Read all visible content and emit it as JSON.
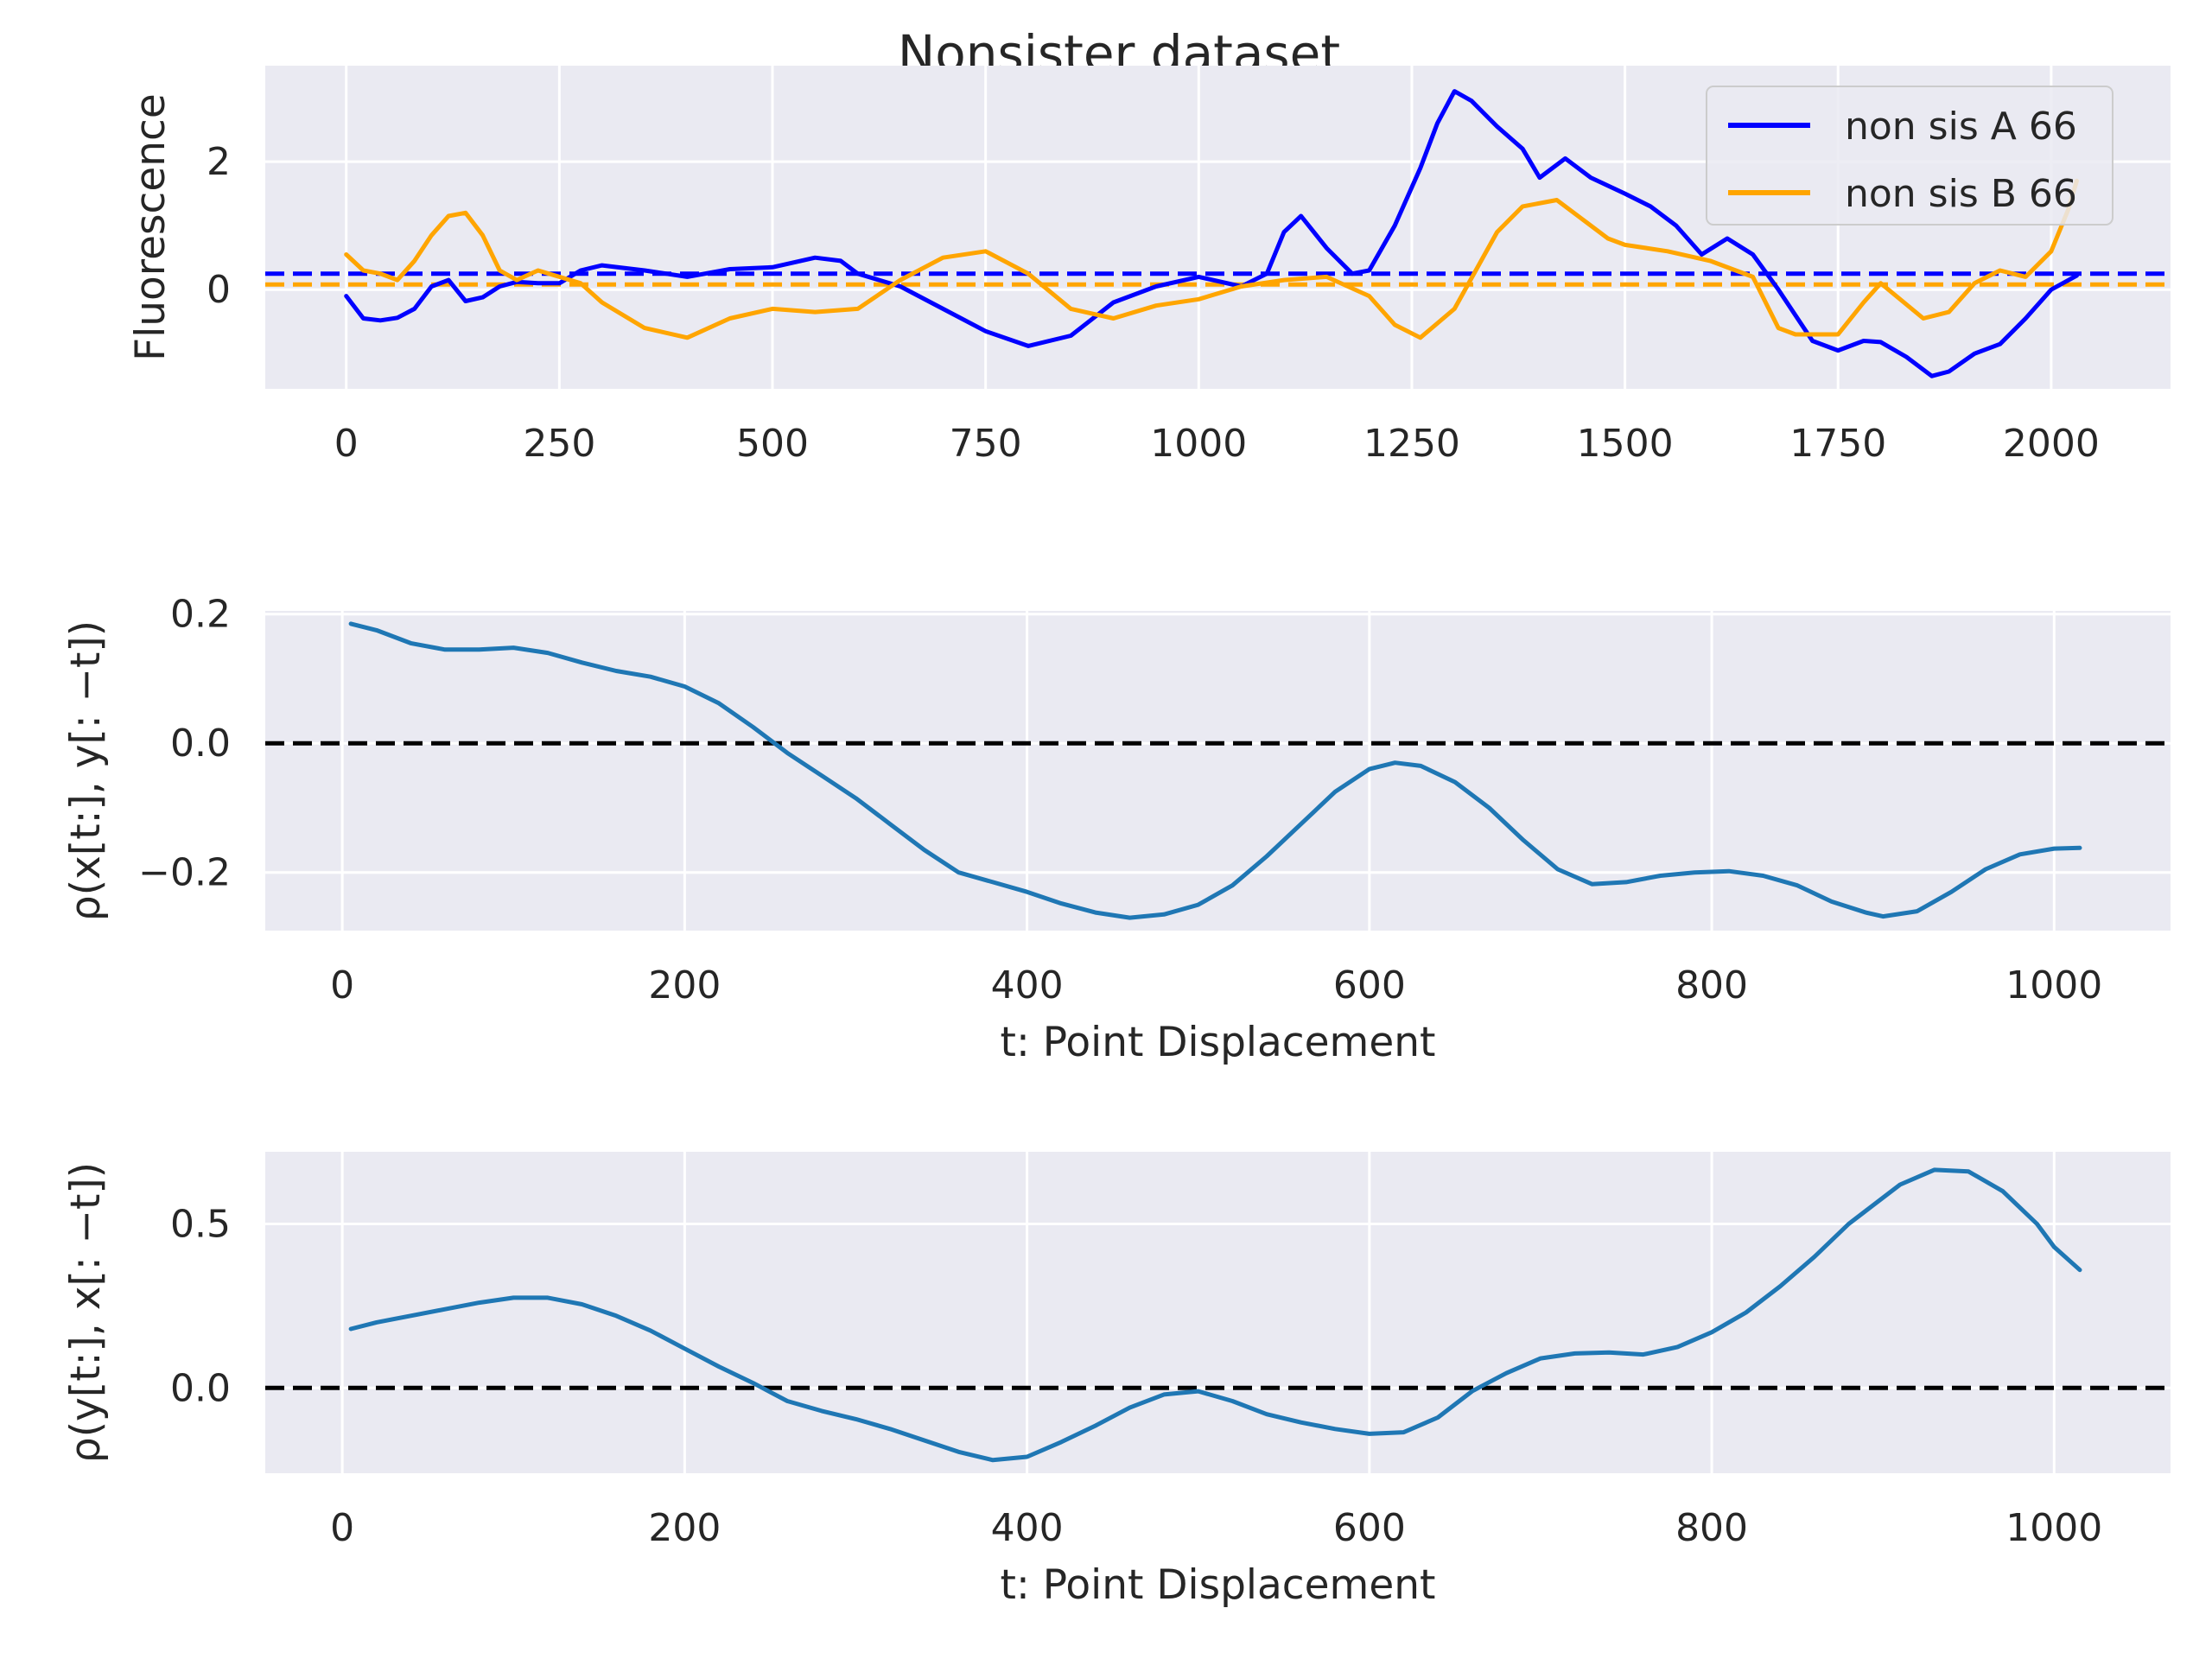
{
  "title": "Nonsister dataset",
  "colors": {
    "background": "#eaeaf2",
    "grid": "#ffffff",
    "series_a": "#0000ff",
    "series_b": "#ffa500",
    "correlation": "#1f77b4",
    "zero_line": "#000000"
  },
  "chart_data": [
    {
      "type": "line",
      "title": "Nonsister dataset",
      "xlabel": "",
      "ylabel": "Fluorescence",
      "xlim": [
        -95,
        2140
      ],
      "ylim": [
        -1.55,
        3.5
      ],
      "xticks": [
        0,
        250,
        500,
        750,
        1000,
        1250,
        1500,
        1750,
        2000
      ],
      "yticks": [
        0,
        2
      ],
      "grid": true,
      "legend": "top-right",
      "series": [
        {
          "name": "non sis A 66",
          "color": "#0000ff",
          "x": [
            0,
            20,
            40,
            60,
            80,
            100,
            120,
            140,
            160,
            180,
            200,
            225,
            250,
            275,
            300,
            350,
            400,
            450,
            500,
            550,
            580,
            600,
            650,
            700,
            750,
            800,
            850,
            900,
            950,
            1000,
            1050,
            1080,
            1100,
            1120,
            1150,
            1180,
            1200,
            1230,
            1260,
            1280,
            1300,
            1320,
            1350,
            1380,
            1400,
            1430,
            1460,
            1500,
            1530,
            1560,
            1590,
            1620,
            1650,
            1680,
            1720,
            1750,
            1780,
            1800,
            1830,
            1860,
            1880,
            1910,
            1940,
            1970,
            2000,
            2030
          ],
          "values": [
            -0.1,
            -0.45,
            -0.48,
            -0.44,
            -0.3,
            0.05,
            0.15,
            -0.18,
            -0.12,
            0.05,
            0.12,
            0.1,
            0.1,
            0.3,
            0.38,
            0.3,
            0.2,
            0.32,
            0.35,
            0.5,
            0.45,
            0.25,
            0.05,
            -0.3,
            -0.65,
            -0.88,
            -0.72,
            -0.2,
            0.05,
            0.2,
            0.05,
            0.25,
            0.9,
            1.15,
            0.65,
            0.25,
            0.3,
            1.0,
            1.9,
            2.6,
            3.1,
            2.95,
            2.55,
            2.2,
            1.75,
            2.05,
            1.75,
            1.5,
            1.3,
            1.0,
            0.55,
            0.8,
            0.55,
            0.0,
            -0.8,
            -0.95,
            -0.8,
            -0.82,
            -1.05,
            -1.35,
            -1.28,
            -1.0,
            -0.85,
            -0.45,
            0.0,
            0.22
          ]
        },
        {
          "name": "non sis B 66",
          "color": "#ffa500",
          "x": [
            0,
            20,
            40,
            60,
            80,
            100,
            120,
            140,
            160,
            180,
            200,
            225,
            250,
            275,
            300,
            350,
            400,
            450,
            500,
            550,
            600,
            650,
            700,
            750,
            800,
            850,
            900,
            950,
            1000,
            1050,
            1100,
            1150,
            1200,
            1230,
            1260,
            1300,
            1350,
            1380,
            1420,
            1450,
            1480,
            1500,
            1550,
            1600,
            1650,
            1680,
            1700,
            1750,
            1780,
            1800,
            1850,
            1880,
            1910,
            1940,
            1970,
            2000,
            2020,
            2030
          ],
          "values": [
            0.55,
            0.3,
            0.25,
            0.15,
            0.45,
            0.85,
            1.15,
            1.2,
            0.85,
            0.3,
            0.15,
            0.3,
            0.2,
            0.1,
            -0.2,
            -0.6,
            -0.75,
            -0.45,
            -0.3,
            -0.35,
            -0.3,
            0.15,
            0.5,
            0.6,
            0.25,
            -0.3,
            -0.45,
            -0.25,
            -0.15,
            0.05,
            0.15,
            0.2,
            -0.1,
            -0.55,
            -0.75,
            -0.3,
            0.9,
            1.3,
            1.4,
            1.1,
            0.8,
            0.7,
            0.6,
            0.45,
            0.2,
            -0.6,
            -0.7,
            -0.7,
            -0.2,
            0.1,
            -0.45,
            -0.35,
            0.1,
            0.3,
            0.2,
            0.6,
            1.25,
            1.7
          ]
        }
      ],
      "hlines": [
        {
          "y": 0.25,
          "color": "#0000ff",
          "style": "dashed"
        },
        {
          "y": 0.08,
          "color": "#ffa500",
          "style": "dashed"
        }
      ]
    },
    {
      "type": "line",
      "title": "",
      "xlabel": "t: Point Displacement",
      "ylabel": "ρ(x[t:], y[: −t])",
      "xlim": [
        -45,
        1068
      ],
      "ylim": [
        -0.29,
        0.205
      ],
      "xticks": [
        0,
        200,
        400,
        600,
        800,
        1000
      ],
      "yticks": [
        0.2,
        0.0,
        -0.2
      ],
      "ytick_labels": [
        "0.2",
        "0.0",
        "−0.2"
      ],
      "grid": true,
      "series": [
        {
          "color": "#1f77b4",
          "x": [
            5,
            20,
            40,
            60,
            80,
            100,
            120,
            140,
            160,
            180,
            200,
            220,
            240,
            260,
            280,
            300,
            320,
            340,
            360,
            380,
            400,
            420,
            440,
            460,
            480,
            500,
            520,
            540,
            560,
            580,
            600,
            615,
            630,
            650,
            670,
            690,
            710,
            730,
            750,
            770,
            790,
            810,
            830,
            850,
            870,
            890,
            900,
            920,
            940,
            960,
            980,
            1000,
            1015
          ],
          "values": [
            0.185,
            0.175,
            0.155,
            0.145,
            0.145,
            0.148,
            0.14,
            0.125,
            0.112,
            0.103,
            0.088,
            0.062,
            0.025,
            -0.015,
            -0.05,
            -0.085,
            -0.125,
            -0.165,
            -0.2,
            -0.215,
            -0.23,
            -0.248,
            -0.262,
            -0.27,
            -0.265,
            -0.25,
            -0.22,
            -0.175,
            -0.125,
            -0.075,
            -0.04,
            -0.03,
            -0.035,
            -0.06,
            -0.1,
            -0.15,
            -0.195,
            -0.218,
            -0.215,
            -0.205,
            -0.2,
            -0.198,
            -0.205,
            -0.22,
            -0.245,
            -0.262,
            -0.268,
            -0.26,
            -0.23,
            -0.195,
            -0.172,
            -0.163,
            -0.162
          ]
        }
      ],
      "hlines": [
        {
          "y": 0.0,
          "color": "#000000",
          "style": "dashed"
        }
      ]
    },
    {
      "type": "line",
      "title": "",
      "xlabel": "t: Point Displacement",
      "ylabel": "ρ(y[t:], x[: −t])",
      "xlim": [
        -45,
        1068
      ],
      "ylim": [
        -0.26,
        0.72
      ],
      "xticks": [
        0,
        200,
        400,
        600,
        800,
        1000
      ],
      "yticks": [
        0.5,
        0.0
      ],
      "ytick_labels": [
        "0.5",
        "0.0"
      ],
      "grid": true,
      "series": [
        {
          "color": "#1f77b4",
          "x": [
            5,
            20,
            40,
            60,
            80,
            100,
            120,
            140,
            160,
            180,
            200,
            220,
            240,
            260,
            280,
            300,
            320,
            340,
            360,
            380,
            400,
            420,
            440,
            460,
            480,
            500,
            520,
            540,
            560,
            580,
            600,
            620,
            640,
            660,
            680,
            700,
            720,
            740,
            760,
            780,
            800,
            820,
            840,
            860,
            880,
            900,
            910,
            930,
            950,
            970,
            990,
            1000,
            1015
          ],
          "values": [
            0.18,
            0.2,
            0.22,
            0.24,
            0.26,
            0.275,
            0.275,
            0.255,
            0.22,
            0.175,
            0.12,
            0.065,
            0.015,
            -0.04,
            -0.07,
            -0.095,
            -0.125,
            -0.16,
            -0.195,
            -0.22,
            -0.21,
            -0.165,
            -0.115,
            -0.06,
            -0.02,
            -0.01,
            -0.04,
            -0.08,
            -0.105,
            -0.125,
            -0.14,
            -0.135,
            -0.09,
            -0.01,
            0.045,
            0.09,
            0.105,
            0.108,
            0.102,
            0.125,
            0.17,
            0.23,
            0.31,
            0.4,
            0.5,
            0.58,
            0.62,
            0.665,
            0.66,
            0.6,
            0.5,
            0.43,
            0.36
          ]
        }
      ],
      "hlines": [
        {
          "y": 0.0,
          "color": "#000000",
          "style": "dashed"
        }
      ]
    }
  ]
}
